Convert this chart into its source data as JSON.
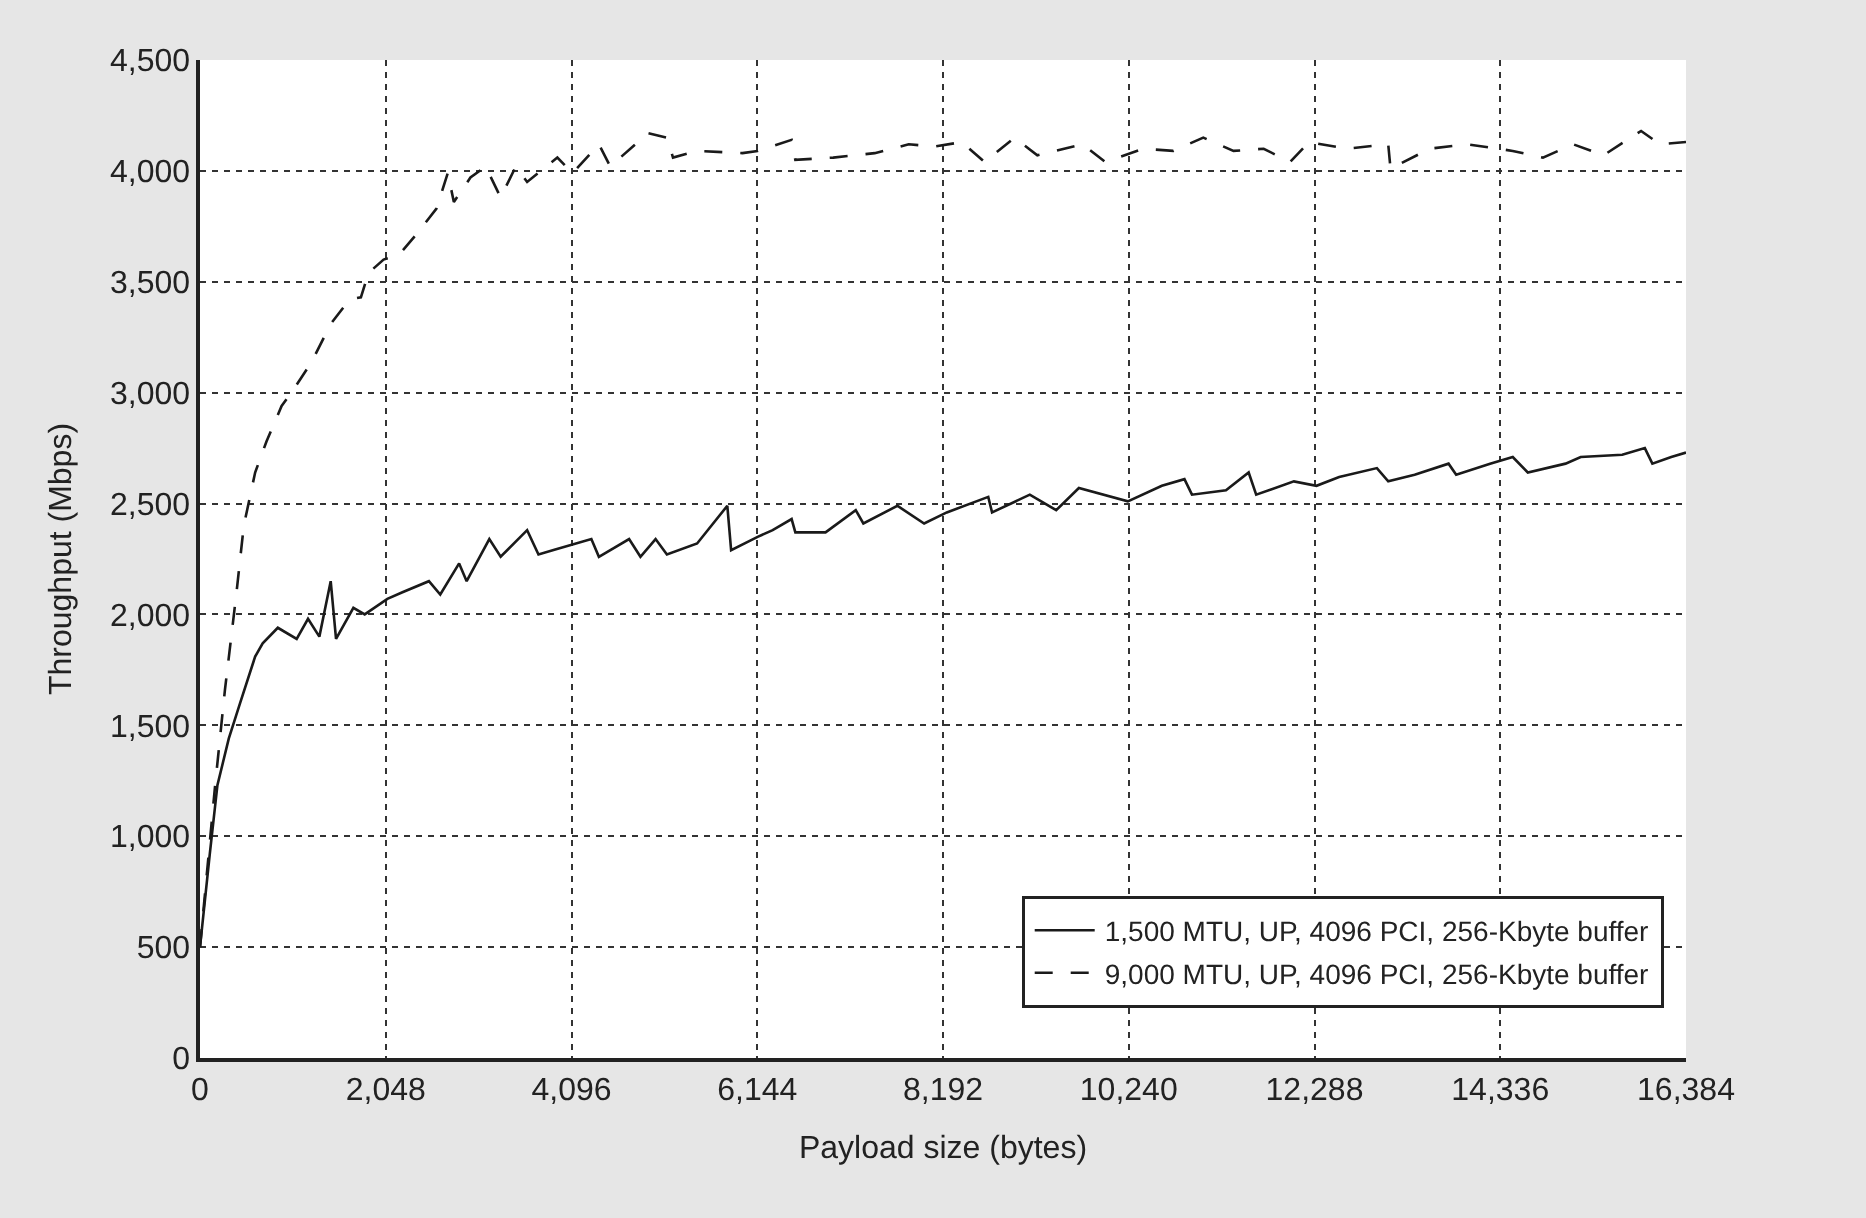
{
  "chart_data": {
    "type": "line",
    "xlabel": "Payload size (bytes)",
    "ylabel": "Throughput (Mbps)",
    "xlim": [
      0,
      16384
    ],
    "xticks": [
      {
        "value": 0,
        "label": "0"
      },
      {
        "value": 2048,
        "label": "2,048"
      },
      {
        "value": 4096,
        "label": "4,096"
      },
      {
        "value": 6144,
        "label": "6,144"
      },
      {
        "value": 8192,
        "label": "8,192"
      },
      {
        "value": 10240,
        "label": "10,240"
      },
      {
        "value": 12288,
        "label": "12,288"
      },
      {
        "value": 14336,
        "label": "14,336"
      },
      {
        "value": 16384,
        "label": "16,384"
      }
    ],
    "ylim": [
      0,
      4500
    ],
    "yticks": [
      {
        "value": 0,
        "label": "0"
      },
      {
        "value": 500,
        "label": "500"
      },
      {
        "value": 1000,
        "label": "1,000"
      },
      {
        "value": 1500,
        "label": "1,500"
      },
      {
        "value": 2000,
        "label": "2,000"
      },
      {
        "value": 2500,
        "label": "2,500"
      },
      {
        "value": 3000,
        "label": "3,000"
      },
      {
        "value": 3500,
        "label": "3,500"
      },
      {
        "value": 4000,
        "label": "4,000"
      },
      {
        "value": 4500,
        "label": "4,500"
      }
    ],
    "grid": true,
    "legend": "bottom right",
    "marker": "none",
    "series": [
      {
        "name": "1,500 MTU, UP, 4096 PCI, 256-Kbyte buffer",
        "color": "#1a1a1a",
        "line_style": "solid",
        "x": [
          0,
          108,
          192,
          317,
          442,
          608,
          691,
          858,
          1066,
          1191,
          1316,
          1441,
          1500,
          1691,
          1816,
          2066,
          2232,
          2524,
          2649,
          2857,
          2940,
          3190,
          3315,
          3607,
          3732,
          3898,
          4315,
          4398,
          4731,
          4856,
          5023,
          5148,
          5481,
          5814,
          5856,
          6148,
          6314,
          6523,
          6564,
          6897,
          7230,
          7314,
          7689,
          7984,
          8234,
          8691,
          8733,
          9149,
          9440,
          9690,
          10230,
          10605,
          10854,
          10937,
          11312,
          11562,
          11645,
          12061,
          12310,
          12560,
          12976,
          13101,
          13392,
          13766,
          13850,
          14224,
          14474,
          14640,
          15056,
          15223,
          15681,
          15930,
          16013,
          16221,
          16384
        ],
        "values": [
          500,
          920,
          1230,
          1440,
          1600,
          1810,
          1870,
          1940,
          1890,
          1980,
          1900,
          2150,
          1890,
          2030,
          2000,
          2070,
          2100,
          2150,
          2090,
          2230,
          2150,
          2340,
          2260,
          2380,
          2270,
          2290,
          2340,
          2260,
          2340,
          2260,
          2340,
          2270,
          2320,
          2490,
          2290,
          2350,
          2380,
          2430,
          2370,
          2370,
          2470,
          2410,
          2490,
          2410,
          2460,
          2530,
          2460,
          2540,
          2470,
          2570,
          2510,
          2580,
          2610,
          2540,
          2560,
          2640,
          2540,
          2600,
          2580,
          2620,
          2660,
          2600,
          2630,
          2680,
          2630,
          2680,
          2710,
          2640,
          2680,
          2710,
          2720,
          2750,
          2680,
          2710,
          2730
        ]
      },
      {
        "name": "9,000 MTU, UP, 4096 PCI, 256-Kbyte buffer",
        "color": "#1a1a1a",
        "line_style": "dashed",
        "x": [
          0,
          167,
          275,
          400,
          483,
          608,
          733,
          900,
          1025,
          1233,
          1441,
          1649,
          1774,
          1858,
          2024,
          2191,
          2399,
          2607,
          2732,
          2799,
          2982,
          3149,
          3315,
          3482,
          3607,
          3940,
          4107,
          4398,
          4523,
          4939,
          5148,
          5215,
          5481,
          5981,
          6148,
          6523,
          6564,
          6981,
          7439,
          7814,
          8105,
          8400,
          8650,
          8982,
          9232,
          9731,
          9981,
          10397,
          10730,
          11062,
          11395,
          11728,
          12019,
          12227,
          12643,
          13101,
          13126,
          13558,
          13974,
          14474,
          14807,
          15140,
          15473,
          15889,
          16097,
          16384
        ],
        "values": [
          500,
          1230,
          1660,
          2090,
          2400,
          2640,
          2780,
          2940,
          3010,
          3140,
          3310,
          3420,
          3430,
          3540,
          3600,
          3620,
          3720,
          3830,
          3990,
          3860,
          3970,
          4020,
          3880,
          4020,
          3950,
          4060,
          3990,
          4120,
          4020,
          4170,
          4150,
          4060,
          4090,
          4080,
          4090,
          4140,
          4050,
          4060,
          4080,
          4120,
          4110,
          4130,
          4040,
          4150,
          4070,
          4120,
          4040,
          4100,
          4090,
          4150,
          4090,
          4100,
          4040,
          4130,
          4100,
          4120,
          4010,
          4100,
          4120,
          4090,
          4060,
          4120,
          4070,
          4180,
          4120,
          4130
        ]
      }
    ]
  }
}
